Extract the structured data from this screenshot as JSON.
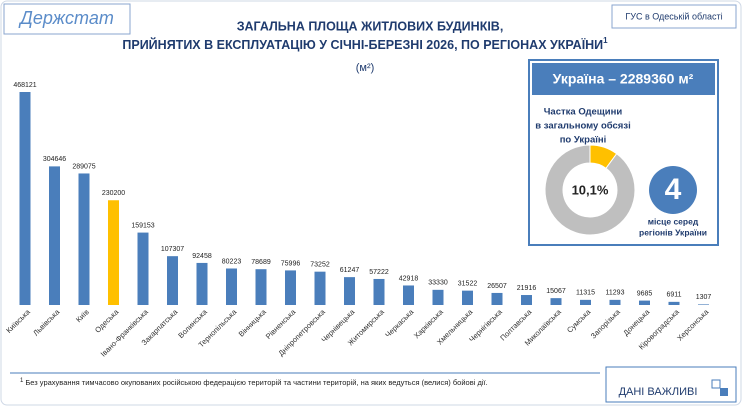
{
  "header": {
    "logo": "Держстат",
    "source": "ГУС в Одеській області"
  },
  "chart_data": [
    {
      "type": "bar",
      "title": [
        "ЗАГАЛЬНА ПЛОЩА ЖИТЛОВИХ БУДИНКІВ,",
        "ПРИЙНЯТИХ В ЕКСПЛУАТАЦІЮ У СІЧНІ-БЕРЕЗНІ 2026, ПО РЕГІОНАХ УКРАЇНИ"
      ],
      "title_note": "1",
      "subtitle": "(м²)",
      "categories": [
        "Київська",
        "Львівська",
        "Київ",
        "Одеська",
        "Івано-Франківська",
        "Закарпатська",
        "Волинська",
        "Тернопільська",
        "Вінницька",
        "Рівненська",
        "Дніпропетровська",
        "Чернівецька",
        "Житомирська",
        "Черкаська",
        "Харківська",
        "Хмельницька",
        "Чернігівська",
        "Полтавська",
        "Миколаївська",
        "Сумська",
        "Запорізька",
        "Донецька",
        "Кіровоградська",
        "Херсонська"
      ],
      "values": [
        468121,
        304646,
        289075,
        230200,
        159153,
        107307,
        92458,
        80223,
        78689,
        75996,
        73252,
        61247,
        57222,
        42918,
        33330,
        31522,
        26507,
        21916,
        15067,
        11315,
        11293,
        9685,
        6911,
        1307
      ],
      "colors": [
        "#4a7ebb",
        "#4a7ebb",
        "#4a7ebb",
        "#ffc000",
        "#4a7ebb",
        "#4a7ebb",
        "#4a7ebb",
        "#4a7ebb",
        "#4a7ebb",
        "#4a7ebb",
        "#4a7ebb",
        "#4a7ebb",
        "#4a7ebb",
        "#4a7ebb",
        "#4a7ebb",
        "#4a7ebb",
        "#4a7ebb",
        "#4a7ebb",
        "#4a7ebb",
        "#4a7ebb",
        "#4a7ebb",
        "#4a7ebb",
        "#4a7ebb",
        "#4a7ebb"
      ]
    },
    {
      "type": "donut",
      "title": [
        "Частка Одещини",
        "в загальному обсязі",
        "по Україні"
      ],
      "values": [
        10.1,
        89.9
      ],
      "value_labels": [
        "10,1%",
        null
      ],
      "colors": [
        "#ffc000",
        "#bfbfbf"
      ]
    }
  ],
  "summary": {
    "total_label": "Україна – 2289360 м²",
    "rank": 4,
    "rank_label": [
      "місце серед",
      "регіонів України"
    ]
  },
  "footnote": {
    "marker": "1",
    "text": "Без урахування тимчасово окупованих російською федерацією територій та частини територій, на яких ведуться (велися) бойові дії."
  },
  "brand": "ДАНІ ВАЖЛИВІ"
}
